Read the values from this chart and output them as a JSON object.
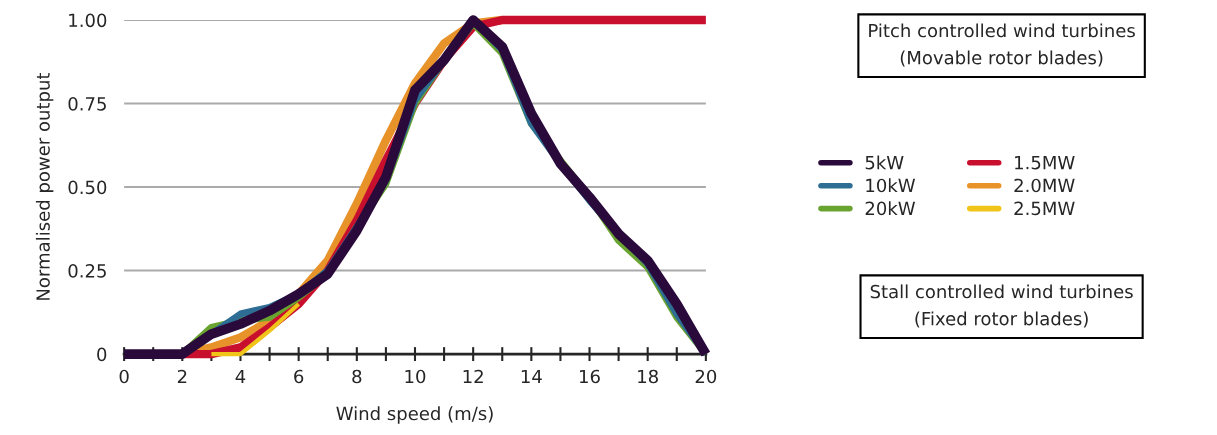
{
  "chart_data": {
    "type": "line",
    "xlabel": "Wind speed (m/s)",
    "ylabel": "Normalised power output",
    "x": [
      0,
      1,
      2,
      3,
      4,
      5,
      6,
      7,
      8,
      9,
      10,
      11,
      12,
      13,
      14,
      15,
      16,
      17,
      18,
      19,
      20
    ],
    "xlim": [
      0,
      20
    ],
    "xticks": [
      0,
      {
        "value": 1,
        "label": null
      },
      2,
      {
        "value": 3,
        "label": null
      },
      4,
      {
        "value": 5,
        "label": null
      },
      6,
      {
        "value": 7,
        "label": null
      },
      8,
      {
        "value": 9,
        "label": null
      },
      10,
      {
        "value": 11,
        "label": null
      },
      12,
      {
        "value": 13,
        "label": null
      },
      14,
      {
        "value": 15,
        "label": null
      },
      16,
      {
        "value": 17,
        "label": null
      },
      18,
      {
        "value": 19,
        "label": null
      },
      20
    ],
    "ylim": [
      0,
      1
    ],
    "yticks": [
      0,
      {
        "value": 0.25,
        "label": "0.25"
      },
      {
        "value": 0.5,
        "label": "0.50"
      },
      {
        "value": 0.75,
        "label": "0.75"
      },
      {
        "value": 1,
        "label": "1.00"
      }
    ],
    "grid": "y",
    "legend": "right",
    "line_style": "solid",
    "marker": "none",
    "annotations": [
      "Pitch controlled wind turbines\n(Movable rotor blades)",
      "Stall controlled wind turbines\n(Fixed rotor blades)"
    ],
    "series": [
      {
        "name": "5kW",
        "color": "#2a0a3a",
        "values": [
          0,
          0,
          0,
          0.06,
          0.09,
          0.13,
          0.18,
          0.24,
          0.37,
          0.53,
          0.79,
          0.88,
          1.0,
          0.92,
          0.72,
          0.57,
          0.47,
          0.36,
          0.28,
          0.15,
          0
        ]
      },
      {
        "name": "10kW",
        "color": "#2e6e94",
        "values": [
          null,
          null,
          0,
          0.06,
          0.12,
          0.14,
          0.18,
          0.25,
          0.38,
          0.52,
          0.76,
          0.88,
          1.0,
          0.91,
          0.69,
          0.57,
          0.46,
          0.36,
          0.27,
          0.12,
          0
        ]
      },
      {
        "name": "20kW",
        "color": "#6aa430",
        "values": [
          null,
          null,
          0,
          0.08,
          0.1,
          0.11,
          0.17,
          0.24,
          0.38,
          0.51,
          0.75,
          0.88,
          0.99,
          0.9,
          0.69,
          0.58,
          0.47,
          0.34,
          0.26,
          0.11,
          0
        ]
      },
      {
        "name": "1.5MW",
        "color": "#c8102e",
        "values": [
          null,
          null,
          0,
          0,
          0.02,
          0.08,
          0.15,
          0.25,
          0.4,
          0.58,
          0.75,
          0.88,
          0.98,
          1,
          1,
          1,
          1,
          1,
          1,
          1,
          1
        ]
      },
      {
        "name": "2.0MW",
        "color": "#e8922a",
        "values": [
          null,
          null,
          0,
          0.02,
          0.05,
          0.1,
          0.18,
          0.28,
          0.45,
          0.64,
          0.81,
          0.93,
          0.99,
          1,
          null,
          null,
          null,
          null,
          null,
          null,
          null
        ]
      },
      {
        "name": "2.5MW",
        "color": "#f0c419",
        "values": [
          null,
          null,
          null,
          0,
          0,
          0.07,
          0.15,
          null,
          null,
          null,
          null,
          null,
          null,
          null,
          null,
          null,
          null,
          null,
          null,
          null,
          null
        ]
      }
    ]
  }
}
